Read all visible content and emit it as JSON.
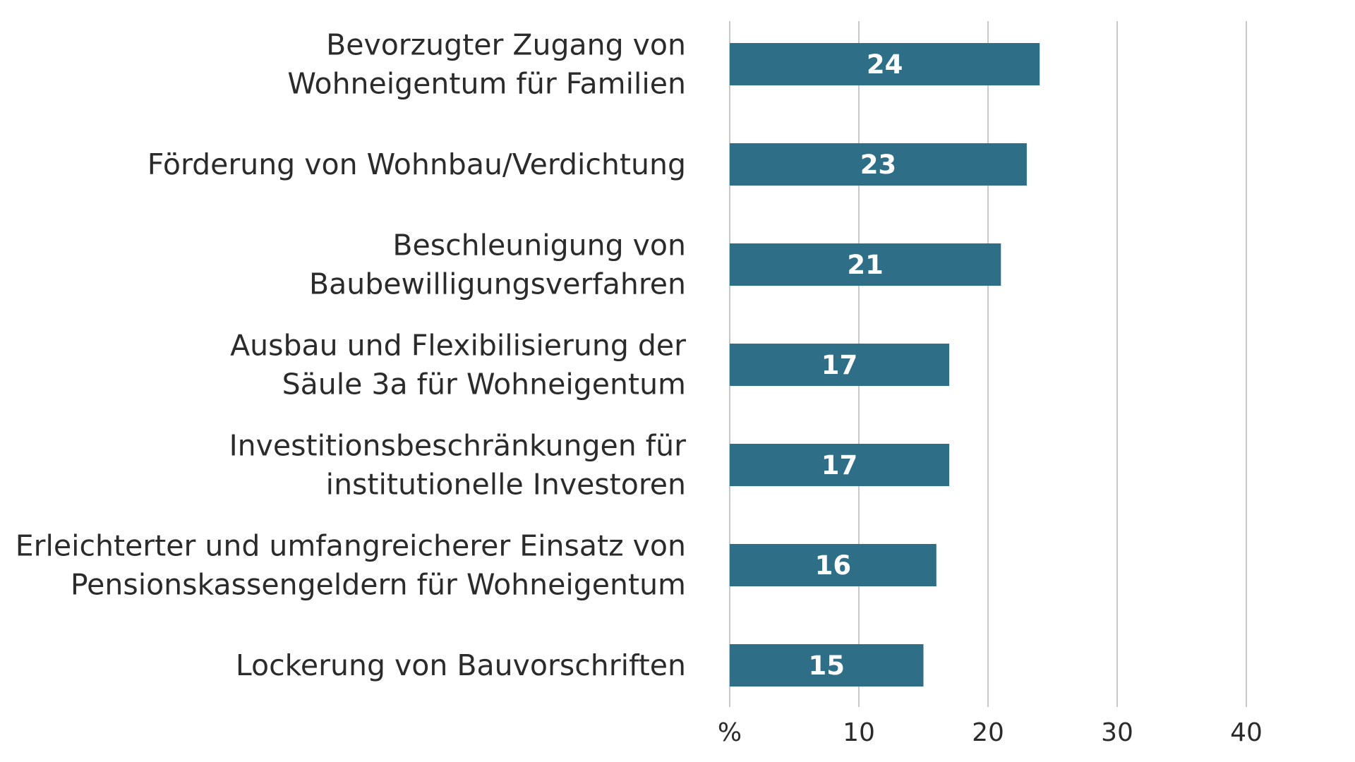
{
  "chart_data": {
    "type": "bar",
    "orientation": "horizontal",
    "categories": [
      [
        "Bevorzugter Zugang von",
        "Wohneigentum für Familien"
      ],
      [
        "Förderung von Wohnbau/Verdichtung"
      ],
      [
        "Beschleunigung von",
        "Baubewilligungsverfahren"
      ],
      [
        "Ausbau und Flexibilisierung der",
        "Säule 3a für Wohneigentum"
      ],
      [
        "Investitionsbeschränkungen für",
        "institutionelle Investoren"
      ],
      [
        "Erleichterter und umfangreicherer Einsatz von",
        "Pensionskassengeldern für Wohneigentum"
      ],
      [
        "Lockerung von Bauvorschriften"
      ]
    ],
    "values": [
      24,
      23,
      21,
      17,
      17,
      16,
      15
    ],
    "value_labels": [
      "24",
      "23",
      "21",
      "17",
      "17",
      "16",
      "15"
    ],
    "x_ticks": [
      0,
      10,
      20,
      30,
      40
    ],
    "x_tick_labels": [
      "%",
      "10",
      "20",
      "30",
      "40"
    ],
    "xlim": [
      0,
      40
    ],
    "grid": true,
    "bar_color": "#2e6f87",
    "grid_color": "#c8c8c8",
    "value_label_color": "#ffffff",
    "text_color": "#2b2b2b"
  }
}
